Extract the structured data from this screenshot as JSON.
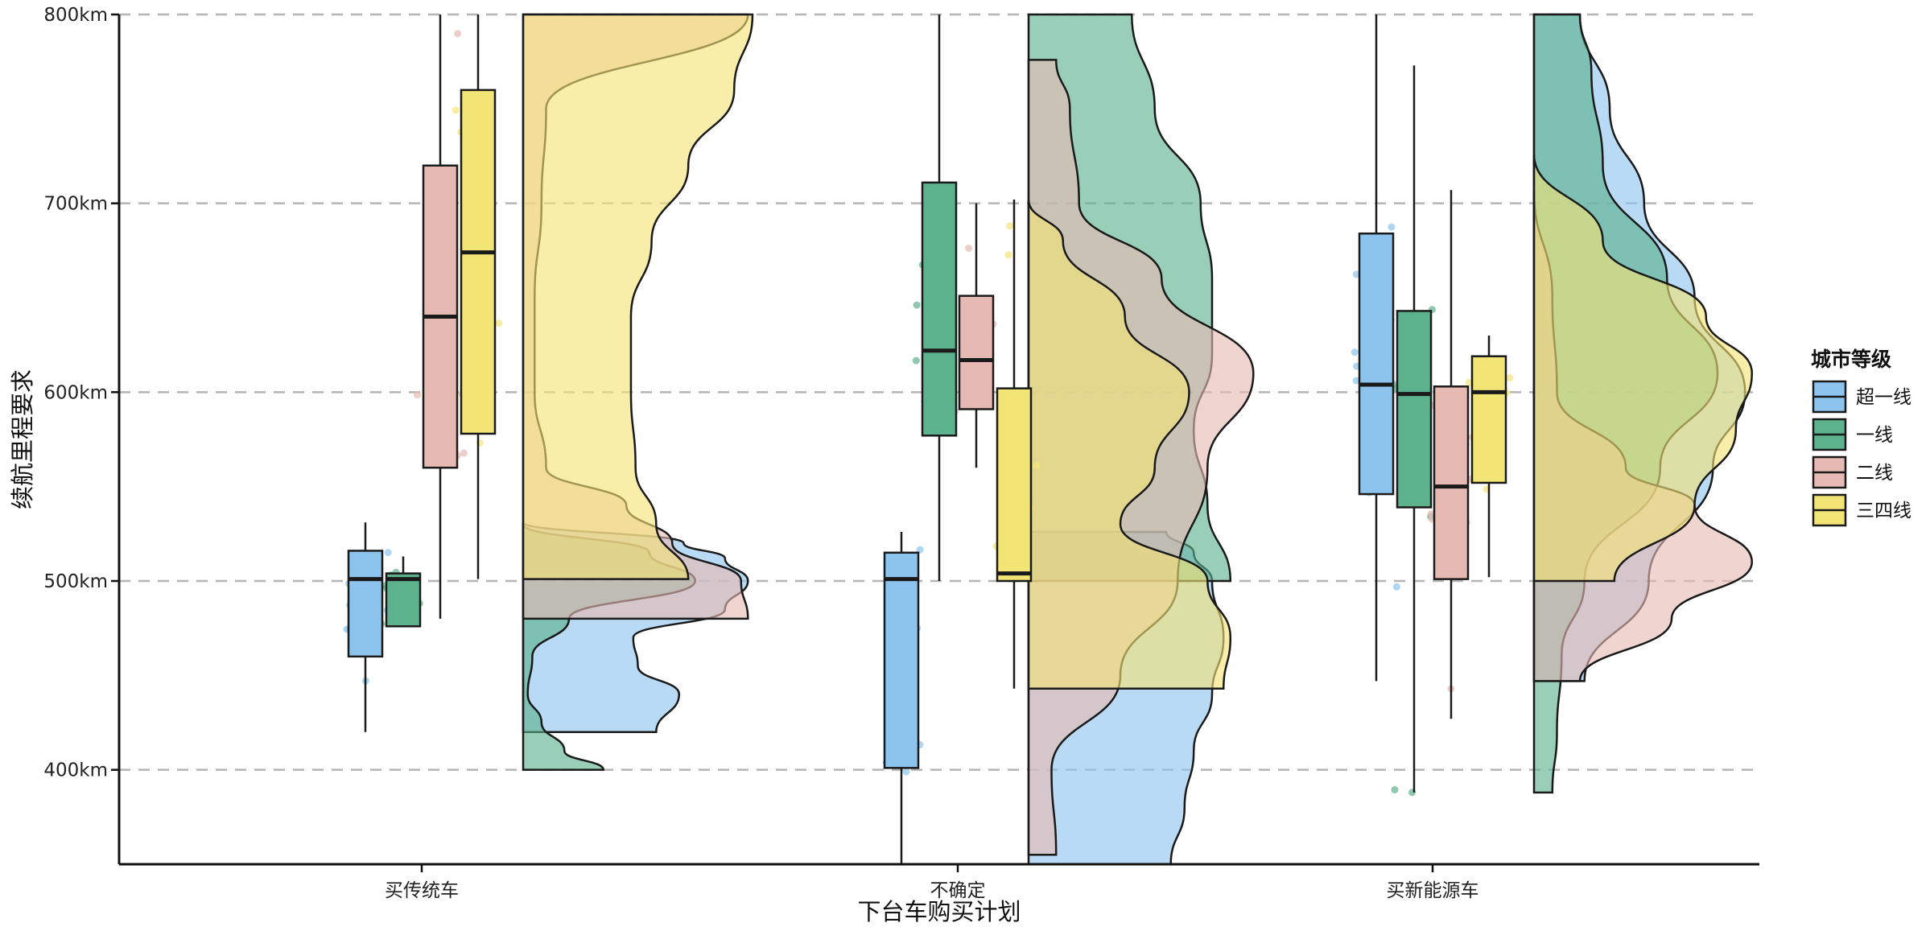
{
  "chart_data": {
    "type": "raincloud",
    "title": "",
    "xlabel": "下台车购买计划",
    "ylabel": "续航里程要求",
    "ylim": [
      350,
      800
    ],
    "y_ticks": [
      400,
      500,
      600,
      700,
      800
    ],
    "y_tick_labels": [
      "400km",
      "500km",
      "600km",
      "700km",
      "800km"
    ],
    "y_grid": "dashed",
    "categories": [
      "买传统车",
      "不确定",
      "买新能源车"
    ],
    "legend": {
      "title": "城市等级",
      "position": "right",
      "entries": [
        "超一线",
        "一线",
        "二线",
        "三四线"
      ]
    },
    "series": [
      {
        "name": "超一线",
        "color": "#8CC4EE",
        "boxes": [
          {
            "min": 420,
            "q1": 460,
            "median": 501,
            "q3": 516,
            "max": 531
          },
          {
            "min": 350,
            "q1": 401,
            "median": 501,
            "q3": 515,
            "max": 526
          },
          {
            "min": 447,
            "q1": 546,
            "median": 604,
            "q3": 684,
            "max": 800
          }
        ],
        "densities": [
          {
            "lo": 420,
            "hi": 531,
            "pts": [
              [
                420,
                0.58
              ],
              [
                440,
                0.68
              ],
              [
                455,
                0.5
              ],
              [
                470,
                0.48
              ],
              [
                485,
                0.88
              ],
              [
                500,
                0.98
              ],
              [
                512,
                0.88
              ],
              [
                520,
                0.7
              ],
              [
                531,
                0
              ]
            ]
          },
          {
            "lo": 350,
            "hi": 526,
            "pts": [
              [
                350,
                0.62
              ],
              [
                380,
                0.68
              ],
              [
                410,
                0.72
              ],
              [
                440,
                0.8
              ],
              [
                470,
                0.85
              ],
              [
                500,
                0.8
              ],
              [
                515,
                0.72
              ],
              [
                526,
                0.6
              ]
            ]
          },
          {
            "lo": 447,
            "hi": 800,
            "pts": [
              [
                447,
                0.22
              ],
              [
                500,
                0.5
              ],
              [
                560,
                0.78
              ],
              [
                600,
                0.92
              ],
              [
                650,
                0.7
              ],
              [
                700,
                0.48
              ],
              [
                750,
                0.33
              ],
              [
                800,
                0.2
              ]
            ]
          }
        ]
      },
      {
        "name": "一线",
        "color": "#5BB28C",
        "boxes": [
          {
            "min": 476,
            "q1": 476,
            "median": 501,
            "q3": 504,
            "max": 513
          },
          {
            "min": 500,
            "q1": 577,
            "median": 622,
            "q3": 711,
            "max": 800
          },
          {
            "min": 388,
            "q1": 539,
            "median": 599,
            "q3": 643,
            "max": 773
          }
        ],
        "densities": [
          {
            "lo": 400,
            "hi": 530,
            "pts": [
              [
                400,
                0.35
              ],
              [
                410,
                0.18
              ],
              [
                425,
                0.08
              ],
              [
                440,
                0.02
              ],
              [
                460,
                0.04
              ],
              [
                480,
                0.2
              ],
              [
                500,
                0.75
              ],
              [
                515,
                0.55
              ],
              [
                530,
                0
              ]
            ]
          },
          {
            "lo": 500,
            "hi": 800,
            "pts": [
              [
                500,
                0.88
              ],
              [
                540,
                0.78
              ],
              [
                580,
                0.72
              ],
              [
                620,
                0.8
              ],
              [
                660,
                0.8
              ],
              [
                700,
                0.75
              ],
              [
                750,
                0.55
              ],
              [
                800,
                0.45
              ]
            ]
          },
          {
            "lo": 388,
            "hi": 800,
            "pts": [
              [
                388,
                0.08
              ],
              [
                420,
                0.1
              ],
              [
                460,
                0.12
              ],
              [
                500,
                0.22
              ],
              [
                560,
                0.55
              ],
              [
                610,
                0.8
              ],
              [
                660,
                0.58
              ],
              [
                720,
                0.3
              ],
              [
                770,
                0.25
              ],
              [
                800,
                0.2
              ]
            ]
          }
        ]
      },
      {
        "name": "二线",
        "color": "#E7B9B3",
        "boxes": [
          {
            "min": 480,
            "q1": 560,
            "median": 640,
            "q3": 720,
            "max": 800
          },
          {
            "min": 560,
            "q1": 591,
            "median": 617,
            "q3": 651,
            "max": 700
          },
          {
            "min": 427,
            "q1": 501,
            "median": 550,
            "q3": 603,
            "max": 707
          }
        ],
        "densities": [
          {
            "lo": 480,
            "hi": 800,
            "pts": [
              [
                480,
                0.98
              ],
              [
                500,
                0.95
              ],
              [
                520,
                0.65
              ],
              [
                540,
                0.45
              ],
              [
                560,
                0.1
              ],
              [
                600,
                0.05
              ],
              [
                650,
                0.05
              ],
              [
                700,
                0.08
              ],
              [
                750,
                0.1
              ],
              [
                800,
                0.98
              ]
            ]
          },
          {
            "lo": 355,
            "hi": 776,
            "pts": [
              [
                355,
                0.12
              ],
              [
                400,
                0.1
              ],
              [
                450,
                0.4
              ],
              [
                500,
                0.65
              ],
              [
                560,
                0.78
              ],
              [
                610,
                0.98
              ],
              [
                660,
                0.58
              ],
              [
                700,
                0.22
              ],
              [
                750,
                0.18
              ],
              [
                776,
                0.12
              ]
            ]
          },
          {
            "lo": 447,
            "hi": 707,
            "pts": [
              [
                447,
                0.2
              ],
              [
                480,
                0.6
              ],
              [
                510,
                0.95
              ],
              [
                540,
                0.7
              ],
              [
                560,
                0.4
              ],
              [
                600,
                0.1
              ],
              [
                650,
                0.08
              ],
              [
                707,
                0
              ]
            ]
          }
        ]
      },
      {
        "name": "三四线",
        "color": "#F3E476",
        "boxes": [
          {
            "min": 501,
            "q1": 578,
            "median": 674,
            "q3": 760,
            "max": 800
          },
          {
            "min": 443,
            "q1": 500,
            "median": 504,
            "q3": 602,
            "max": 702
          },
          {
            "min": 502,
            "q1": 552,
            "median": 600,
            "q3": 619,
            "max": 630
          }
        ],
        "densities": [
          {
            "lo": 501,
            "hi": 800,
            "pts": [
              [
                501,
                0.72
              ],
              [
                530,
                0.58
              ],
              [
                560,
                0.49
              ],
              [
                600,
                0.47
              ],
              [
                640,
                0.47
              ],
              [
                680,
                0.56
              ],
              [
                720,
                0.72
              ],
              [
                760,
                0.92
              ],
              [
                800,
                1.0
              ]
            ]
          },
          {
            "lo": 443,
            "hi": 702,
            "pts": [
              [
                443,
                0.85
              ],
              [
                470,
                0.88
              ],
              [
                500,
                0.78
              ],
              [
                530,
                0.4
              ],
              [
                560,
                0.55
              ],
              [
                600,
                0.7
              ],
              [
                640,
                0.42
              ],
              [
                680,
                0.15
              ],
              [
                702,
                0
              ]
            ]
          },
          {
            "lo": 500,
            "hi": 726,
            "pts": [
              [
                500,
                0.35
              ],
              [
                540,
                0.7
              ],
              [
                580,
                0.88
              ],
              [
                610,
                0.95
              ],
              [
                640,
                0.75
              ],
              [
                680,
                0.3
              ],
              [
                726,
                0
              ]
            ]
          }
        ]
      }
    ]
  }
}
